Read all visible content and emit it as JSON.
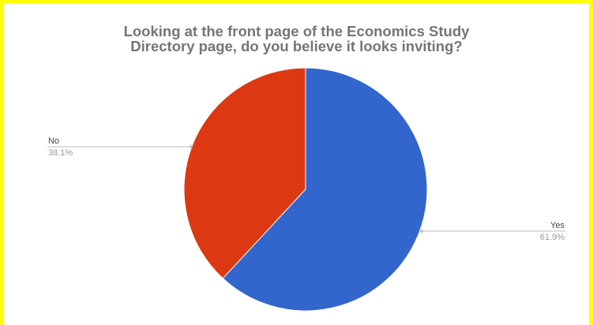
{
  "chart_data": {
    "type": "pie",
    "title_lines": [
      "Looking at the front page of the Economics Study",
      "Directory page, do you believe it looks inviting?"
    ],
    "slices": [
      {
        "label": "No",
        "percent_label": "38.1%",
        "value": 38.1,
        "color": "#dc3912"
      },
      {
        "label": "Yes",
        "percent_label": "61.9%",
        "value": 61.9,
        "color": "#3366cc"
      }
    ],
    "legend": "none",
    "label_style": "callouts with name and percentage"
  },
  "colors": {
    "frame_border": "#ffff00",
    "title_text": "#757575",
    "label_name": "#444444",
    "label_percent": "#999999",
    "leader_line": "#bdbdbd"
  }
}
